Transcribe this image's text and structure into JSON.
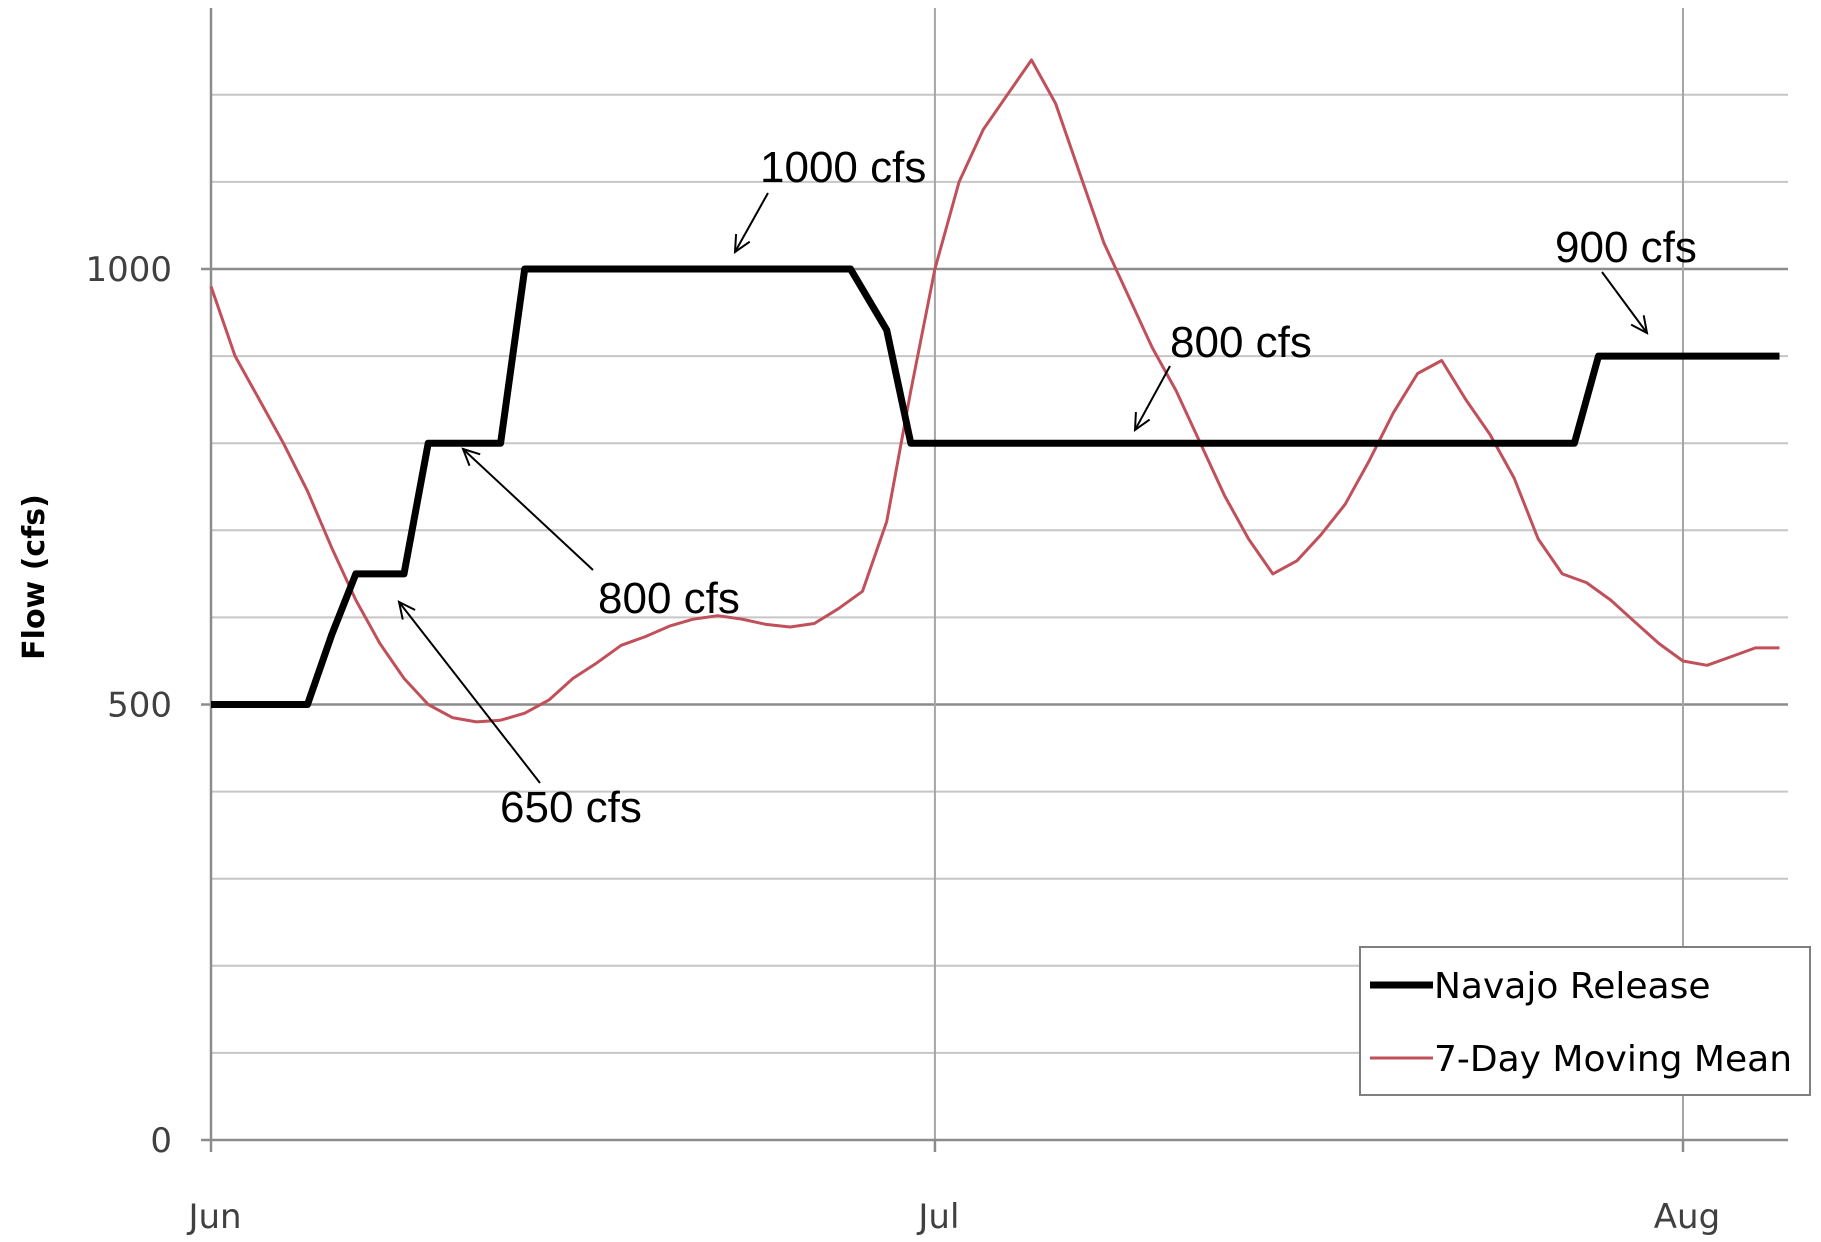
{
  "chart_data": {
    "type": "line",
    "ylabel": "Flow (cfs)",
    "xlabel": "",
    "ylim": [
      0,
      1300
    ],
    "xlim": [
      0,
      65
    ],
    "x_ticks": [
      {
        "label": "Jun",
        "value": 0
      },
      {
        "label": "Jul",
        "value": 30
      },
      {
        "label": "Aug",
        "value": 61
      }
    ],
    "y_ticks": [
      {
        "label": "0",
        "value": 0
      },
      {
        "label": "500",
        "value": 500
      },
      {
        "label": "1000",
        "value": 1000
      }
    ],
    "minor_y_gridlines": [
      100,
      200,
      300,
      400,
      600,
      700,
      800,
      900,
      1100,
      1200
    ],
    "grid": true,
    "legend_position": "bottom-right",
    "series": [
      {
        "name": "Navajo Release",
        "color": "#000000",
        "x": [
          0,
          4,
          5,
          6,
          8,
          9,
          12,
          13,
          14,
          26.5,
          28,
          29,
          30,
          56.5,
          57.5,
          65
        ],
        "y": [
          500,
          500,
          580,
          650,
          650,
          800,
          800,
          1000,
          1000,
          1000,
          930,
          800,
          800,
          800,
          900,
          900
        ]
      },
      {
        "name": "7-Day Moving Mean",
        "color": "#c0505a",
        "x": [
          0,
          1,
          2,
          3,
          4,
          5,
          6,
          7,
          8,
          9,
          10,
          11,
          12,
          13,
          14,
          15,
          16,
          17,
          18,
          19,
          20,
          21,
          22,
          23,
          24,
          25,
          26,
          27,
          28,
          29,
          30,
          31,
          32,
          33,
          34,
          35,
          36,
          37,
          38,
          39,
          40,
          41,
          42,
          43,
          44,
          45,
          46,
          47,
          48,
          49,
          50,
          51,
          52,
          53,
          54,
          55,
          56,
          57,
          58,
          59,
          60,
          61,
          62,
          63,
          64,
          65
        ],
        "y": [
          980,
          900,
          850,
          800,
          745,
          680,
          620,
          570,
          530,
          500,
          485,
          480,
          482,
          490,
          505,
          530,
          548,
          568,
          578,
          590,
          598,
          602,
          598,
          592,
          589,
          593,
          610,
          630,
          710,
          860,
          1000,
          1100,
          1160,
          1200,
          1240,
          1190,
          1110,
          1030,
          970,
          910,
          860,
          800,
          740,
          690,
          650,
          665,
          695,
          730,
          780,
          835,
          880,
          895,
          850,
          810,
          760,
          690,
          650,
          640,
          620,
          595,
          570,
          550,
          545,
          555,
          565,
          565
        ]
      }
    ],
    "annotations": [
      {
        "text": "1000 cfs",
        "x": 21,
        "y": 1000
      },
      {
        "text": "800 cfs",
        "x": 10.5,
        "y": 800
      },
      {
        "text": "650 cfs",
        "x": 7.8,
        "y": 650
      },
      {
        "text": "800 cfs",
        "x": 37.5,
        "y": 800
      },
      {
        "text": "900 cfs",
        "x": 58.5,
        "y": 900
      }
    ]
  }
}
